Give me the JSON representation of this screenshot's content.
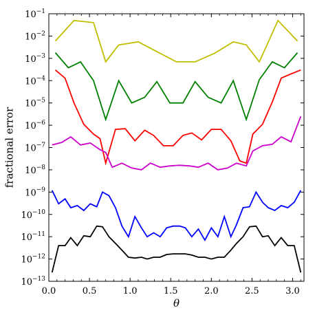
{
  "chart_data": {
    "type": "line",
    "title": "",
    "xlabel": "θ",
    "ylabel": "fractional error",
    "xlim": [
      0.0,
      3.14
    ],
    "ylim": [
      1e-13,
      0.1
    ],
    "yscale": "log",
    "grid": false,
    "legend": "none",
    "x_ticks": [
      {
        "value": 0.0,
        "label": "0.0"
      },
      {
        "value": 0.5,
        "label": "0.5"
      },
      {
        "value": 1.0,
        "label": "1.0"
      },
      {
        "value": 1.5,
        "label": "1.5"
      },
      {
        "value": 2.0,
        "label": "2.0"
      },
      {
        "value": 2.5,
        "label": "2.5"
      },
      {
        "value": 3.0,
        "label": "3.0"
      }
    ],
    "y_ticks": [
      {
        "exp": -13,
        "base": "10",
        "sup": "−13"
      },
      {
        "exp": -12,
        "base": "10",
        "sup": "−12"
      },
      {
        "exp": -11,
        "base": "10",
        "sup": "−11"
      },
      {
        "exp": -10,
        "base": "10",
        "sup": "−10"
      },
      {
        "exp": -9,
        "base": "10",
        "sup": "−9"
      },
      {
        "exp": -8,
        "base": "10",
        "sup": "−8"
      },
      {
        "exp": -7,
        "base": "10",
        "sup": "−7"
      },
      {
        "exp": -6,
        "base": "10",
        "sup": "−6"
      },
      {
        "exp": -5,
        "base": "10",
        "sup": "−5"
      },
      {
        "exp": -4,
        "base": "10",
        "sup": "−4"
      },
      {
        "exp": -3,
        "base": "10",
        "sup": "−3"
      },
      {
        "exp": -2,
        "base": "10",
        "sup": "−2"
      },
      {
        "exp": -1,
        "base": "10",
        "sup": "−1"
      }
    ],
    "series": [
      {
        "color": "#bfbf00",
        "x": [
          0.08,
          0.31,
          0.55,
          0.7,
          0.86,
          1.1,
          1.33,
          1.57,
          1.8,
          2.04,
          2.27,
          2.43,
          2.59,
          2.82,
          3.06
        ],
        "y": [
          0.006,
          0.05,
          0.04,
          0.0007,
          0.004,
          0.0055,
          0.002,
          0.0007,
          0.0007,
          0.0017,
          0.0055,
          0.004,
          0.0007,
          0.05,
          0.006
        ]
      },
      {
        "color": "#008000",
        "x": [
          0.08,
          0.24,
          0.39,
          0.55,
          0.7,
          0.86,
          1.02,
          1.18,
          1.33,
          1.49,
          1.65,
          1.8,
          1.96,
          2.12,
          2.27,
          2.43,
          2.59,
          2.75,
          2.9,
          3.06
        ],
        "y": [
          0.0018,
          0.00038,
          0.0007,
          0.0001,
          1.8e-06,
          0.0001,
          1e-05,
          1.8e-05,
          9e-05,
          1e-05,
          1e-05,
          9e-05,
          1.8e-05,
          1e-05,
          0.0001,
          1.8e-06,
          0.00011,
          0.0007,
          0.00038,
          0.0018
        ]
      },
      {
        "color": "#ff0000",
        "x": [
          0.08,
          0.2,
          0.31,
          0.43,
          0.55,
          0.63,
          0.7,
          0.82,
          0.94,
          1.06,
          1.18,
          1.29,
          1.41,
          1.53,
          1.65,
          1.76,
          1.88,
          2.0,
          2.12,
          2.24,
          2.35,
          2.43,
          2.51,
          2.63,
          2.75,
          2.86,
          2.98,
          3.1
        ],
        "y": [
          0.0003,
          0.00013,
          1e-05,
          1.1e-06,
          4e-07,
          2.5e-07,
          2e-08,
          6.5e-07,
          7e-07,
          2e-07,
          6e-07,
          3.5e-07,
          1.2e-07,
          1.2e-07,
          3.5e-07,
          4.5e-07,
          2.2e-07,
          6.5e-07,
          6.5e-07,
          2e-07,
          2.5e-08,
          2e-08,
          4e-07,
          1.1e-06,
          1.1e-05,
          0.00013,
          0.0002,
          0.0003
        ]
      },
      {
        "color": "#cc00cc",
        "x": [
          0.04,
          0.16,
          0.27,
          0.39,
          0.51,
          0.63,
          0.7,
          0.78,
          0.9,
          1.02,
          1.14,
          1.25,
          1.37,
          1.49,
          1.61,
          1.73,
          1.84,
          1.96,
          2.08,
          2.2,
          2.31,
          2.43,
          2.51,
          2.63,
          2.75,
          2.86,
          2.98,
          3.1
        ],
        "y": [
          1.3e-07,
          1.7e-07,
          3e-07,
          1.3e-07,
          1.6e-07,
          8e-08,
          6e-08,
          1.3e-08,
          2e-08,
          1.2e-08,
          1e-08,
          2e-08,
          1.3e-08,
          1.5e-08,
          1.6e-08,
          1.5e-08,
          1.3e-08,
          2e-08,
          1e-08,
          1.2e-08,
          2e-08,
          1.5e-08,
          7e-08,
          1.2e-07,
          1.4e-07,
          3e-07,
          1.8e-07,
          2.5e-06
        ]
      },
      {
        "color": "#0000ff",
        "x": [
          0.04,
          0.12,
          0.2,
          0.27,
          0.35,
          0.43,
          0.51,
          0.59,
          0.66,
          0.74,
          0.82,
          0.9,
          0.98,
          1.06,
          1.14,
          1.21,
          1.29,
          1.37,
          1.45,
          1.53,
          1.61,
          1.68,
          1.76,
          1.84,
          1.92,
          2.0,
          2.08,
          2.16,
          2.24,
          2.31,
          2.39,
          2.47,
          2.55,
          2.63,
          2.7,
          2.78,
          2.86,
          2.94,
          3.02,
          3.1
        ],
        "y": [
          1.2e-09,
          3e-10,
          5e-10,
          2e-10,
          2.5e-10,
          1.5e-10,
          3e-10,
          2.2e-10,
          1e-09,
          7e-10,
          2e-10,
          3e-11,
          1e-11,
          8e-11,
          2.5e-11,
          1e-11,
          1.5e-11,
          1e-11,
          2.5e-11,
          3e-11,
          3e-11,
          2.5e-11,
          1e-11,
          2.2e-11,
          7e-12,
          2.5e-11,
          1e-11,
          8e-11,
          1e-11,
          3.5e-11,
          2e-10,
          2.2e-10,
          1e-09,
          3.5e-10,
          2e-10,
          1.5e-10,
          2.5e-10,
          2e-10,
          3.5e-10,
          1.2e-09
        ]
      },
      {
        "color": "#000000",
        "x": [
          0.04,
          0.12,
          0.2,
          0.27,
          0.35,
          0.43,
          0.51,
          0.59,
          0.66,
          0.74,
          0.82,
          0.9,
          0.98,
          1.06,
          1.14,
          1.21,
          1.29,
          1.37,
          1.45,
          1.53,
          1.61,
          1.68,
          1.76,
          1.84,
          1.92,
          2.0,
          2.08,
          2.16,
          2.24,
          2.31,
          2.39,
          2.47,
          2.55,
          2.63,
          2.7,
          2.78,
          2.86,
          2.94,
          3.02,
          3.1
        ],
        "y": [
          2.5e-13,
          4e-12,
          4e-12,
          9e-12,
          4e-12,
          1.1e-11,
          1e-11,
          3e-11,
          2.8e-11,
          1e-11,
          5e-12,
          2.5e-12,
          1.2e-12,
          1.1e-12,
          1.2e-12,
          1e-12,
          1.2e-12,
          1.2e-12,
          1.6e-12,
          1.7e-12,
          1.7e-12,
          1.7e-12,
          1.5e-12,
          1.2e-12,
          1.2e-12,
          1e-12,
          1.2e-12,
          1.2e-12,
          2.5e-12,
          5e-12,
          1e-11,
          2.8e-11,
          3e-11,
          1e-11,
          1.1e-11,
          4e-12,
          9e-12,
          4e-12,
          4e-12,
          2.5e-13
        ]
      }
    ]
  }
}
